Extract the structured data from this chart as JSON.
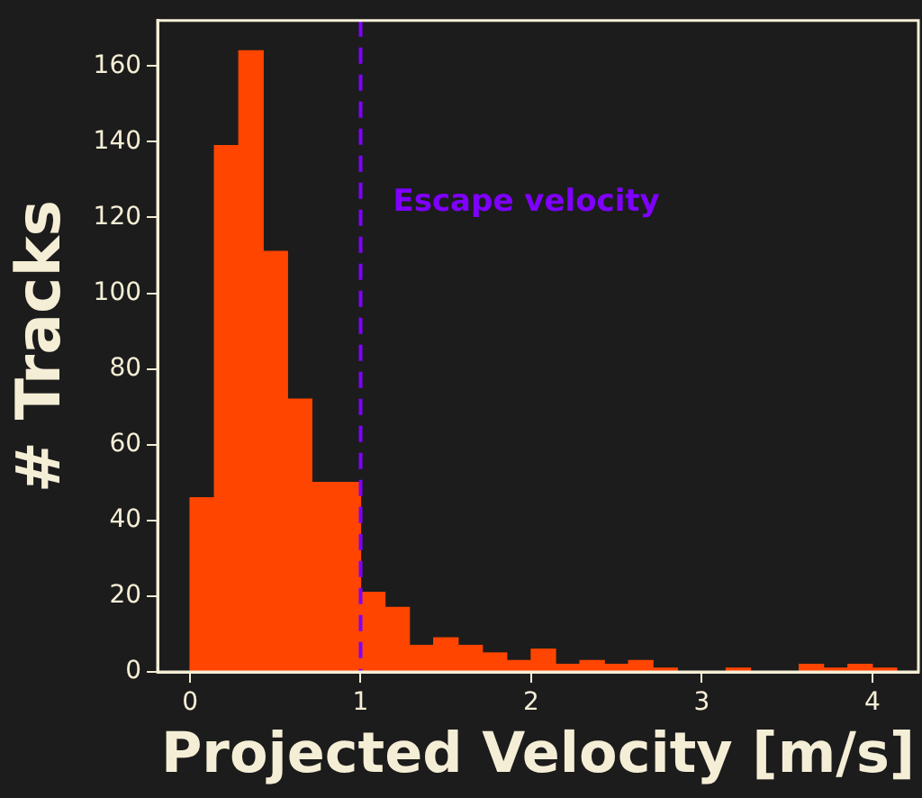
{
  "chart_data": {
    "type": "histogram",
    "xlabel": "Projected Velocity [m/s]",
    "ylabel": "# Tracks",
    "bins": [
      0,
      0.143,
      0.286,
      0.429,
      0.571,
      0.714,
      0.857,
      1,
      1.143,
      1.286,
      1.429,
      1.571,
      1.714,
      1.857,
      2,
      2.143,
      2.286,
      2.429,
      2.571,
      2.714,
      2.857,
      3,
      3.143,
      3.286,
      3.429,
      3.571,
      3.714,
      3.857,
      4,
      4.143
    ],
    "values": [
      46,
      139,
      164,
      111,
      72,
      50,
      50,
      21,
      17,
      7,
      9,
      7,
      5,
      3,
      6,
      2,
      3,
      2,
      3,
      1,
      0,
      0,
      1,
      0,
      0,
      2,
      1,
      2,
      1
    ],
    "color": "#ff4500",
    "xlim": [
      -0.19,
      4.27
    ],
    "xticks": [
      0,
      1,
      2,
      3,
      4
    ],
    "ylim": [
      0,
      172
    ],
    "yticks": [
      0,
      20,
      40,
      60,
      80,
      100,
      120,
      140,
      160
    ],
    "grid": false,
    "legend": false,
    "ref_lines": [
      {
        "axis": "x",
        "value": 1,
        "label": "Escape velocity",
        "color": "#7f00ff",
        "line_style": "dashed"
      }
    ]
  }
}
